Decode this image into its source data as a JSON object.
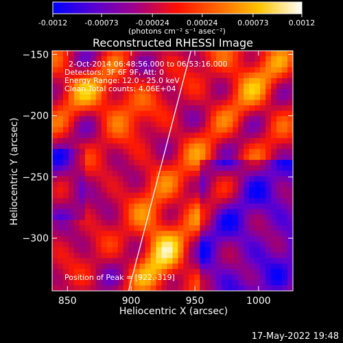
{
  "chart_data": {
    "type": "heatmap",
    "title": "Reconstructed RHESSI Image",
    "xlabel": "Heliocentric X (arcsec)",
    "ylabel": "Heliocentric Y (arcsec)",
    "xlim": [
      838,
      1027
    ],
    "ylim": [
      -343,
      -147
    ],
    "x_ticks": [
      850,
      900,
      950,
      1000
    ],
    "y_ticks": [
      -150,
      -200,
      -250,
      -300
    ],
    "colorbar": {
      "range": [
        -0.0012,
        0.0012
      ],
      "ticks": [
        "-0.0012",
        "-0.00073",
        "-0.00024",
        "0.00024",
        "0.00073",
        "0.0012"
      ],
      "tick_values": [
        -0.0012,
        -0.00073,
        -0.00024,
        0.00024,
        0.00073,
        0.0012
      ],
      "unit": "(photons cm⁻² s⁻¹ asec⁻²)",
      "colormap": [
        "#0000ff",
        "#6a00c8",
        "#b0005a",
        "#ff1a00",
        "#ff7a00",
        "#ffd400",
        "#ffffff"
      ]
    },
    "annotations": [
      "2-Oct-2014 06:48:56.000 to 06:53:16.000",
      "Detectors: 3F 6F 9F, Att: 0",
      "Energy Range: 12.0 - 25.0 keV",
      "Clean    Total counts: 4.06E+04"
    ],
    "peak_label": "Position of Peak = [922,-319]",
    "limb_line": {
      "x": [
        898,
        947
      ],
      "y": [
        -343,
        -147
      ]
    }
  },
  "footer": {
    "timestamp": "17-May-2022 19:48"
  }
}
